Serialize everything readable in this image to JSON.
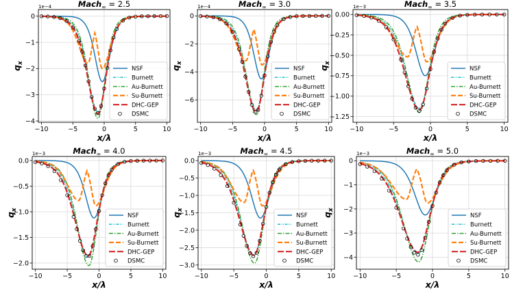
{
  "figure": {
    "legend_entries": [
      {
        "name": "NSF",
        "color": "#1f77b4",
        "style": "solid"
      },
      {
        "name": "Burnett",
        "color": "#17becf",
        "style": "dashdotdot"
      },
      {
        "name": "Au-Burnett",
        "color": "#2ca02c",
        "style": "dashdot"
      },
      {
        "name": "Su-Burnett",
        "color": "#ff7f0e",
        "style": "dashed"
      },
      {
        "name": "DHC-GEP",
        "color": "#d62728",
        "style": "longdash"
      },
      {
        "name": "DSMC",
        "color": "#000000",
        "style": "circle"
      }
    ]
  },
  "chart_data": [
    {
      "type": "line",
      "title_prefix": "Mach",
      "title_subscript": "∞",
      "title_suffix": " = 2.5",
      "xlabel": "x/λ",
      "ylabel": "q",
      "ylabel_subscript": "x",
      "y_exponent_label": "1e−4",
      "xlim": [
        -10.5,
        10.5
      ],
      "ylim": [
        -4.05,
        0.25
      ],
      "xticks": [
        -10,
        -5,
        0,
        5,
        10
      ],
      "yticks": [
        0,
        -1,
        -2,
        -3,
        -4
      ],
      "ytick_labels": [
        "0",
        "−1",
        "−2",
        "−3",
        "−4"
      ],
      "xtick_labels": [
        "−10",
        "−5",
        "0",
        "5",
        "10"
      ],
      "grid": true,
      "legend_position": "lower-right",
      "series": [
        {
          "name": "NSF",
          "peak_x": -0.3,
          "peak_y": -2.5,
          "width_left": 1.6,
          "width_right": 1.6
        },
        {
          "name": "Burnett",
          "peak_x": -1.0,
          "peak_y": -3.65,
          "width_left": 2.2,
          "width_right": 1.8
        },
        {
          "name": "Au-Burnett",
          "peak_x": -1.0,
          "peak_y": -3.9,
          "width_left": 2.0,
          "width_right": 1.6
        },
        {
          "name": "Su-Burnett",
          "peak_x": -2.6,
          "peak_y": -1.8,
          "width_left": 2.0,
          "width_right": 1.7,
          "secondary_x": -0.3,
          "secondary_y": -2.0
        },
        {
          "name": "DHC-GEP",
          "peak_x": -1.0,
          "peak_y": -3.72,
          "width_left": 2.3,
          "width_right": 1.8
        },
        {
          "name": "DSMC",
          "peak_x": -1.0,
          "peak_y": -3.7,
          "width_left": 2.3,
          "width_right": 1.8,
          "marker_x": [
            -10,
            -9,
            -8,
            -7,
            -6,
            -5,
            -4,
            -3.5,
            -3,
            -2.5,
            -2,
            -1.5,
            -1,
            -0.5,
            0,
            0.5,
            1,
            1.5,
            2,
            3,
            4,
            5,
            6,
            7,
            8,
            9,
            10
          ]
        }
      ]
    },
    {
      "type": "line",
      "title_prefix": "Mach",
      "title_subscript": "∞",
      "title_suffix": " = 3.0",
      "xlabel": "x/λ",
      "ylabel": "q",
      "ylabel_subscript": "x",
      "y_exponent_label": "1e−4",
      "xlim": [
        -10.5,
        10.5
      ],
      "ylim": [
        -7.6,
        0.45
      ],
      "xticks": [
        -10,
        -5,
        0,
        5,
        10
      ],
      "yticks": [
        0,
        -2,
        -4,
        -6
      ],
      "ytick_labels": [
        "0",
        "−2",
        "−4",
        "−6"
      ],
      "xtick_labels": [
        "−10",
        "−5",
        "0",
        "5",
        "10"
      ],
      "grid": true,
      "legend_position": "lower-right",
      "series": [
        {
          "name": "NSF",
          "peak_x": -0.5,
          "peak_y": -4.5,
          "width_left": 1.6,
          "width_right": 1.6
        },
        {
          "name": "Burnett",
          "peak_x": -1.3,
          "peak_y": -6.7,
          "width_left": 2.3,
          "width_right": 1.8
        },
        {
          "name": "Au-Burnett",
          "peak_x": -1.3,
          "peak_y": -7.05,
          "width_left": 2.1,
          "width_right": 1.6
        },
        {
          "name": "Su-Burnett",
          "peak_x": -2.9,
          "peak_y": -3.2,
          "width_left": 2.1,
          "width_right": 1.7,
          "secondary_x": -0.4,
          "secondary_y": -3.5
        },
        {
          "name": "DHC-GEP",
          "peak_x": -1.3,
          "peak_y": -6.85,
          "width_left": 2.4,
          "width_right": 1.8
        },
        {
          "name": "DSMC",
          "peak_x": -1.3,
          "peak_y": -6.9,
          "width_left": 2.4,
          "width_right": 1.8,
          "marker_x": [
            -10,
            -9,
            -8,
            -7,
            -6,
            -5,
            -4,
            -3.5,
            -3,
            -2.5,
            -2,
            -1.5,
            -1,
            -0.5,
            0,
            0.5,
            1,
            1.5,
            2,
            3,
            4,
            5,
            6,
            7,
            8,
            9,
            10
          ]
        }
      ]
    },
    {
      "type": "line",
      "title_prefix": "Mach",
      "title_subscript": "∞",
      "title_suffix": " = 3.5",
      "xlabel": "x/λ",
      "ylabel": "q",
      "ylabel_subscript": "x",
      "y_exponent_label": "1e−3",
      "xlim": [
        -10.5,
        10.5
      ],
      "ylim": [
        -1.32,
        0.06
      ],
      "xticks": [
        -10,
        -5,
        0,
        5,
        10
      ],
      "yticks": [
        0,
        -0.25,
        -0.5,
        -0.75,
        -1.0,
        -1.25
      ],
      "ytick_labels": [
        "0.00",
        "−0.25",
        "−0.50",
        "−0.75",
        "−1.00",
        "−1.25"
      ],
      "xtick_labels": [
        "−10",
        "−5",
        "0",
        "5",
        "10"
      ],
      "grid": true,
      "legend_position": "lower-right",
      "series": [
        {
          "name": "NSF",
          "peak_x": -0.7,
          "peak_y": -0.75,
          "width_left": 1.7,
          "width_right": 1.7
        },
        {
          "name": "Burnett",
          "peak_x": -1.5,
          "peak_y": -1.15,
          "width_left": 2.5,
          "width_right": 1.9
        },
        {
          "name": "Au-Burnett",
          "peak_x": -1.5,
          "peak_y": -1.2,
          "width_left": 2.3,
          "width_right": 1.7
        },
        {
          "name": "Su-Burnett",
          "peak_x": -3.1,
          "peak_y": -0.52,
          "width_left": 2.3,
          "width_right": 1.8,
          "secondary_x": -0.5,
          "secondary_y": -0.58
        },
        {
          "name": "DHC-GEP",
          "peak_x": -1.5,
          "peak_y": -1.17,
          "width_left": 2.7,
          "width_right": 1.9
        },
        {
          "name": "DSMC",
          "peak_x": -1.5,
          "peak_y": -1.18,
          "width_left": 2.7,
          "width_right": 1.9,
          "marker_x": [
            -10,
            -9,
            -8,
            -7,
            -6,
            -5,
            -4,
            -3.5,
            -3,
            -2.5,
            -2,
            -1.5,
            -1,
            -0.5,
            0,
            0.5,
            1,
            1.5,
            2,
            3,
            4,
            5,
            6,
            7,
            8,
            9,
            10
          ]
        }
      ]
    },
    {
      "type": "line",
      "title_prefix": "Mach",
      "title_subscript": "∞",
      "title_suffix": " = 4.0",
      "xlabel": "x/λ",
      "ylabel": "q",
      "ylabel_subscript": "x",
      "y_exponent_label": "1e−3",
      "xlim": [
        -10.5,
        10.5
      ],
      "ylim": [
        -2.12,
        0.08
      ],
      "xticks": [
        -10,
        -5,
        0,
        5,
        10
      ],
      "yticks": [
        0,
        -0.5,
        -1.0,
        -1.5,
        -2.0
      ],
      "ytick_labels": [
        "0.0",
        "−0.5",
        "−1.0",
        "−1.5",
        "−2.0"
      ],
      "xtick_labels": [
        "−10",
        "−5",
        "0",
        "5",
        "10"
      ],
      "grid": true,
      "legend_position": "lower-right",
      "series": [
        {
          "name": "NSF",
          "peak_x": -0.8,
          "peak_y": -1.12,
          "width_left": 1.8,
          "width_right": 1.8
        },
        {
          "name": "Burnett",
          "peak_x": -1.7,
          "peak_y": -1.88,
          "width_left": 2.7,
          "width_right": 2.0
        },
        {
          "name": "Au-Burnett",
          "peak_x": -1.6,
          "peak_y": -2.05,
          "width_left": 2.5,
          "width_right": 1.8
        },
        {
          "name": "Su-Burnett",
          "peak_x": -3.2,
          "peak_y": -0.78,
          "width_left": 2.4,
          "width_right": 1.9,
          "secondary_x": -0.5,
          "secondary_y": -0.88
        },
        {
          "name": "DHC-GEP",
          "peak_x": -1.7,
          "peak_y": -1.86,
          "width_left": 2.9,
          "width_right": 2.0
        },
        {
          "name": "DSMC",
          "peak_x": -1.7,
          "peak_y": -1.88,
          "width_left": 3.0,
          "width_right": 2.0,
          "marker_x": [
            -10,
            -9,
            -8,
            -7,
            -6,
            -5,
            -4,
            -3.5,
            -3,
            -2.5,
            -2,
            -1.5,
            -1,
            -0.5,
            0,
            0.5,
            1,
            1.5,
            2,
            3,
            4,
            5,
            6,
            7,
            8,
            9,
            10
          ]
        }
      ]
    },
    {
      "type": "line",
      "title_prefix": "Mach",
      "title_subscript": "∞",
      "title_suffix": " = 4.5",
      "xlabel": "x/λ",
      "ylabel": "q",
      "ylabel_subscript": "x",
      "y_exponent_label": "1e−3",
      "xlim": [
        -10.5,
        10.5
      ],
      "ylim": [
        -3.12,
        0.12
      ],
      "xticks": [
        -10,
        -5,
        0,
        5,
        10
      ],
      "yticks": [
        0,
        -0.5,
        -1.0,
        -1.5,
        -2.0,
        -2.5,
        -3.0
      ],
      "ytick_labels": [
        "0.0",
        "−0.5",
        "−1.0",
        "−1.5",
        "−2.0",
        "−2.5",
        "−3.0"
      ],
      "xtick_labels": [
        "−10",
        "−5",
        "0",
        "5",
        "10"
      ],
      "grid": true,
      "legend_position": "lower-right",
      "series": [
        {
          "name": "NSF",
          "peak_x": -0.9,
          "peak_y": -1.65,
          "width_left": 1.9,
          "width_right": 1.9
        },
        {
          "name": "Burnett",
          "peak_x": -1.9,
          "peak_y": -2.72,
          "width_left": 2.9,
          "width_right": 2.1
        },
        {
          "name": "Au-Burnett",
          "peak_x": -1.8,
          "peak_y": -2.95,
          "width_left": 2.7,
          "width_right": 1.9
        },
        {
          "name": "Su-Burnett",
          "peak_x": -3.4,
          "peak_y": -1.2,
          "width_left": 2.6,
          "width_right": 2.0,
          "secondary_x": -0.6,
          "secondary_y": -1.3
        },
        {
          "name": "DHC-GEP",
          "peak_x": -1.9,
          "peak_y": -2.72,
          "width_left": 3.1,
          "width_right": 2.1
        },
        {
          "name": "DSMC",
          "peak_x": -1.9,
          "peak_y": -2.75,
          "width_left": 3.2,
          "width_right": 2.1,
          "marker_x": [
            -10,
            -9,
            -8,
            -7,
            -6,
            -5,
            -4,
            -3.5,
            -3,
            -2.5,
            -2,
            -1.5,
            -1,
            -0.5,
            0,
            0.5,
            1,
            1.5,
            2,
            3,
            4,
            5,
            6,
            7,
            8,
            9,
            10
          ]
        }
      ]
    },
    {
      "type": "line",
      "title_prefix": "Mach",
      "title_subscript": "∞",
      "title_suffix": " = 5.0",
      "xlabel": "x/λ",
      "ylabel": "q",
      "ylabel_subscript": "x",
      "y_exponent_label": "1e−3",
      "xlim": [
        -10.5,
        10.5
      ],
      "ylim": [
        -4.5,
        0.18
      ],
      "xticks": [
        -10,
        -5,
        0,
        5,
        10
      ],
      "yticks": [
        0,
        -1,
        -2,
        -3,
        -4
      ],
      "ytick_labels": [
        "0",
        "−1",
        "−2",
        "−3",
        "−4"
      ],
      "xtick_labels": [
        "−10",
        "−5",
        "0",
        "5",
        "10"
      ],
      "grid": true,
      "legend_position": "lower-right",
      "series": [
        {
          "name": "NSF",
          "peak_x": -1.0,
          "peak_y": -2.25,
          "width_left": 2.0,
          "width_right": 2.0
        },
        {
          "name": "Burnett",
          "peak_x": -2.0,
          "peak_y": -3.85,
          "width_left": 3.1,
          "width_right": 2.2
        },
        {
          "name": "Au-Burnett",
          "peak_x": -1.9,
          "peak_y": -4.2,
          "width_left": 2.9,
          "width_right": 2.0
        },
        {
          "name": "Su-Burnett",
          "peak_x": -3.6,
          "peak_y": -1.6,
          "width_left": 2.8,
          "width_right": 2.1,
          "secondary_x": -0.7,
          "secondary_y": -1.75
        },
        {
          "name": "DHC-GEP",
          "peak_x": -2.0,
          "peak_y": -3.8,
          "width_left": 3.3,
          "width_right": 2.2
        },
        {
          "name": "DSMC",
          "peak_x": -2.0,
          "peak_y": -3.9,
          "width_left": 3.4,
          "width_right": 2.2,
          "marker_x": [
            -10,
            -9,
            -8,
            -7,
            -6,
            -5,
            -4,
            -3.5,
            -3,
            -2.5,
            -2,
            -1.5,
            -1,
            -0.5,
            0,
            0.5,
            1,
            1.5,
            2,
            3,
            4,
            5,
            6,
            7,
            8,
            9,
            10
          ]
        }
      ]
    }
  ]
}
